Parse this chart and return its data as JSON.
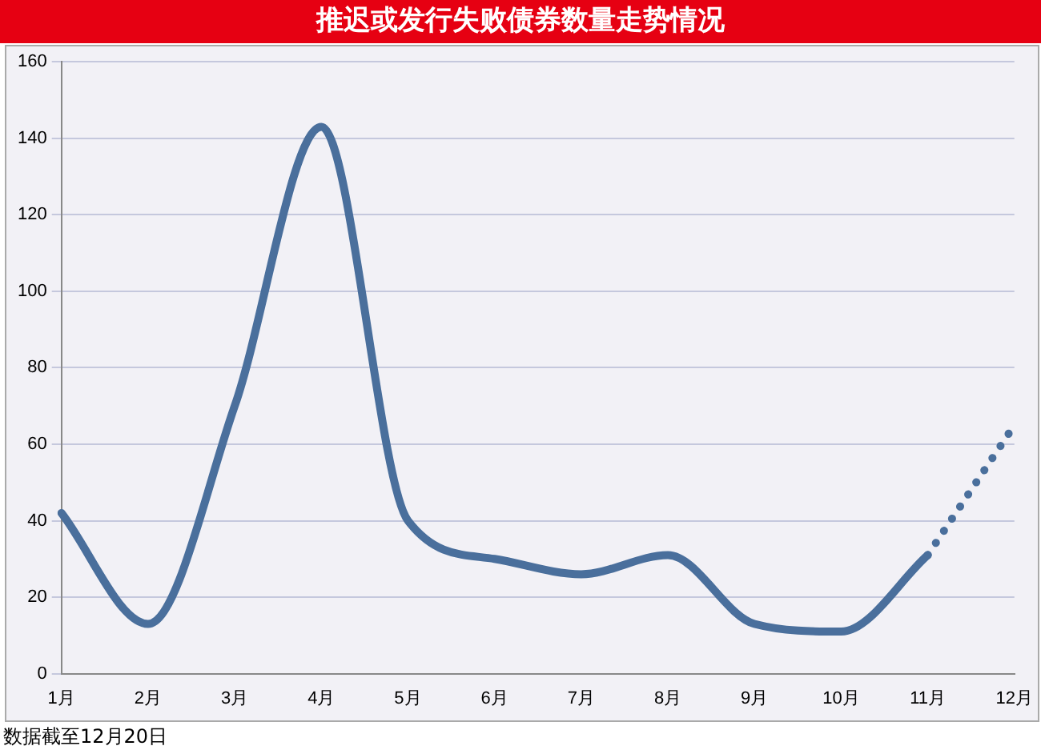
{
  "chart_data": {
    "type": "line",
    "title": "推迟或发行失败债券数量走势情况",
    "categories": [
      "1月",
      "2月",
      "3月",
      "4月",
      "5月",
      "6月",
      "7月",
      "8月",
      "9月",
      "10月",
      "11月",
      "12月"
    ],
    "series": [
      {
        "color": "#4a6f9c",
        "line_style": "solid",
        "values": [
          42,
          13,
          70,
          143,
          40,
          30,
          26,
          31,
          13,
          11,
          31,
          null
        ]
      },
      {
        "color": "#4a6f9c",
        "line_style": "dotted",
        "values": [
          null,
          null,
          null,
          null,
          null,
          null,
          null,
          null,
          null,
          null,
          31,
          65
        ]
      }
    ],
    "ylim": [
      0,
      160
    ],
    "yticks": [
      0,
      20,
      40,
      60,
      80,
      100,
      120,
      140,
      160
    ],
    "grid": "y",
    "legend": false,
    "marker": "none",
    "annotations": [
      "数据截至12月20日"
    ]
  }
}
